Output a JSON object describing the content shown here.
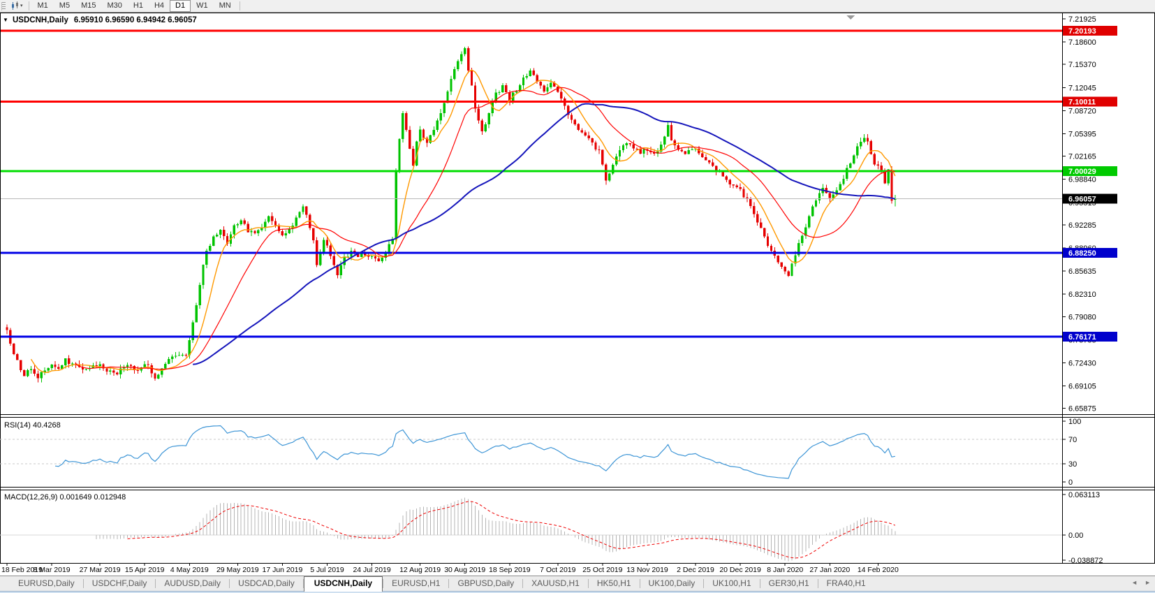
{
  "toolbar": {
    "chart_type_icon": "candlestick-chart-icon",
    "dropdown_caret": "▾",
    "timeframes": [
      {
        "label": "M1",
        "active": false
      },
      {
        "label": "M5",
        "active": false
      },
      {
        "label": "M15",
        "active": false
      },
      {
        "label": "M30",
        "active": false
      },
      {
        "label": "H1",
        "active": false
      },
      {
        "label": "H4",
        "active": false
      },
      {
        "label": "D1",
        "active": true
      },
      {
        "label": "W1",
        "active": false
      },
      {
        "label": "MN",
        "active": false
      }
    ]
  },
  "chart_data": {
    "type": "candlestick",
    "symbol": "USDCNH",
    "timeframe": "Daily",
    "title_symbol": "USDCNH,Daily",
    "title_ohlc": "6.95910 6.96590 6.94942 6.96057",
    "last_bar": {
      "open": 6.9591,
      "high": 6.9659,
      "low": 6.94942,
      "close": 6.96057
    },
    "candle_count": 259,
    "close_waypoints": [
      [
        0,
        6.775
      ],
      [
        1,
        6.755
      ],
      [
        3,
        6.725
      ],
      [
        5,
        6.708
      ],
      [
        7,
        6.713
      ],
      [
        9,
        6.702
      ],
      [
        12,
        6.72
      ],
      [
        15,
        6.715
      ],
      [
        17,
        6.728
      ],
      [
        20,
        6.722
      ],
      [
        23,
        6.712
      ],
      [
        26,
        6.721
      ],
      [
        29,
        6.715
      ],
      [
        32,
        6.71
      ],
      [
        35,
        6.72
      ],
      [
        38,
        6.715
      ],
      [
        41,
        6.721
      ],
      [
        43,
        6.7
      ],
      [
        45,
        6.715
      ],
      [
        47,
        6.728
      ],
      [
        50,
        6.735
      ],
      [
        52,
        6.738
      ],
      [
        54,
        6.78
      ],
      [
        56,
        6.84
      ],
      [
        58,
        6.885
      ],
      [
        60,
        6.905
      ],
      [
        62,
        6.915
      ],
      [
        64,
        6.898
      ],
      [
        66,
        6.92
      ],
      [
        68,
        6.928
      ],
      [
        70,
        6.915
      ],
      [
        72,
        6.908
      ],
      [
        74,
        6.922
      ],
      [
        76,
        6.932
      ],
      [
        78,
        6.922
      ],
      [
        80,
        6.908
      ],
      [
        82,
        6.918
      ],
      [
        84,
        6.932
      ],
      [
        86,
        6.948
      ],
      [
        87,
        6.938
      ],
      [
        89,
        6.898
      ],
      [
        90,
        6.868
      ],
      [
        92,
        6.902
      ],
      [
        94,
        6.88
      ],
      [
        96,
        6.852
      ],
      [
        98,
        6.874
      ],
      [
        100,
        6.884
      ],
      [
        102,
        6.878
      ],
      [
        104,
        6.882
      ],
      [
        106,
        6.877
      ],
      [
        108,
        6.872
      ],
      [
        110,
        6.882
      ],
      [
        112,
        6.905
      ],
      [
        113,
        7.0
      ],
      [
        114,
        7.045
      ],
      [
        115,
        7.082
      ],
      [
        116,
        7.058
      ],
      [
        117,
        7.032
      ],
      [
        118,
        7.008
      ],
      [
        119,
        7.04
      ],
      [
        120,
        7.058
      ],
      [
        122,
        7.038
      ],
      [
        124,
        7.062
      ],
      [
        126,
        7.085
      ],
      [
        128,
        7.115
      ],
      [
        130,
        7.145
      ],
      [
        132,
        7.168
      ],
      [
        133,
        7.178
      ],
      [
        134,
        7.148
      ],
      [
        136,
        7.092
      ],
      [
        138,
        7.058
      ],
      [
        140,
        7.082
      ],
      [
        142,
        7.112
      ],
      [
        144,
        7.122
      ],
      [
        146,
        7.102
      ],
      [
        148,
        7.118
      ],
      [
        150,
        7.132
      ],
      [
        152,
        7.142
      ],
      [
        154,
        7.128
      ],
      [
        156,
        7.118
      ],
      [
        158,
        7.128
      ],
      [
        160,
        7.112
      ],
      [
        162,
        7.092
      ],
      [
        164,
        7.075
      ],
      [
        166,
        7.06
      ],
      [
        168,
        7.052
      ],
      [
        170,
        7.038
      ],
      [
        172,
        7.028
      ],
      [
        174,
        6.986
      ],
      [
        176,
        7.012
      ],
      [
        178,
        7.032
      ],
      [
        180,
        7.042
      ],
      [
        182,
        7.034
      ],
      [
        184,
        7.026
      ],
      [
        186,
        7.032
      ],
      [
        188,
        7.026
      ],
      [
        190,
        7.036
      ],
      [
        192,
        7.065
      ],
      [
        193,
        7.042
      ],
      [
        195,
        7.034
      ],
      [
        197,
        7.026
      ],
      [
        199,
        7.034
      ],
      [
        201,
        7.026
      ],
      [
        203,
        7.014
      ],
      [
        205,
        7.006
      ],
      [
        207,
        6.996
      ],
      [
        209,
        6.988
      ],
      [
        211,
        6.98
      ],
      [
        213,
        6.972
      ],
      [
        215,
        6.958
      ],
      [
        217,
        6.938
      ],
      [
        219,
        6.916
      ],
      [
        221,
        6.896
      ],
      [
        223,
        6.876
      ],
      [
        225,
        6.862
      ],
      [
        227,
        6.847
      ],
      [
        229,
        6.882
      ],
      [
        231,
        6.908
      ],
      [
        233,
        6.932
      ],
      [
        235,
        6.96
      ],
      [
        237,
        6.976
      ],
      [
        239,
        6.962
      ],
      [
        241,
        6.97
      ],
      [
        243,
        6.992
      ],
      [
        245,
        7.012
      ],
      [
        247,
        7.034
      ],
      [
        249,
        7.046
      ],
      [
        250,
        7.04
      ],
      [
        252,
        7.012
      ],
      [
        254,
        6.998
      ],
      [
        255,
        6.985
      ],
      [
        256,
        7.0
      ],
      [
        257,
        6.959
      ],
      [
        258,
        6.96057
      ]
    ],
    "colors": {
      "up_candle": "#00c300",
      "down_candle": "#e60000",
      "background": "#ffffff",
      "border": "#000000"
    },
    "moving_averages": [
      {
        "period": 8,
        "color": "#ff9900",
        "width": 1.4
      },
      {
        "period": 21,
        "color": "#ff0000",
        "width": 1.2
      },
      {
        "period": 55,
        "color": "#1515bb",
        "width": 2
      }
    ],
    "horizontal_lines": [
      {
        "price": 7.20193,
        "color": "#ff0000",
        "width": 3,
        "badge_bg": "#e00000",
        "badge_fg": "#ffffff"
      },
      {
        "price": 7.10011,
        "color": "#ff0000",
        "width": 3,
        "badge_bg": "#e00000",
        "badge_fg": "#ffffff"
      },
      {
        "price": 7.00029,
        "color": "#00dd00",
        "width": 3,
        "badge_bg": "#00ca00",
        "badge_fg": "#ffffff"
      },
      {
        "price": 6.8825,
        "color": "#0000e6",
        "width": 3,
        "badge_bg": "#0000cc",
        "badge_fg": "#ffffff"
      },
      {
        "price": 6.76171,
        "color": "#0000e6",
        "width": 3,
        "badge_bg": "#0000cc",
        "badge_fg": "#ffffff"
      }
    ],
    "current_price": {
      "value": "6.96057",
      "price": 6.96057,
      "line_color": "#b8b8b8",
      "badge_bg": "#000000",
      "badge_fg": "#ffffff"
    },
    "y_axis": {
      "top_price": 7.2263,
      "bottom_price": 6.6514,
      "ticks": [
        "7.21925",
        "7.18600",
        "7.15370",
        "7.12045",
        "7.08720",
        "7.05395",
        "7.02165",
        "6.98840",
        "6.95515",
        "6.92285",
        "6.88960",
        "6.85635",
        "6.82310",
        "6.79080",
        "6.75755",
        "6.72430",
        "6.69105",
        "6.65875"
      ]
    },
    "x_labels": [
      "18 Feb 2019",
      "8 Mar 2019",
      "27 Mar 2019",
      "15 Apr 2019",
      "4 May 2019",
      "29 May 2019",
      "17 Jun 2019",
      "5 Jul 2019",
      "24 Jul 2019",
      "12 Aug 2019",
      "30 Aug 2019",
      "18 Sep 2019",
      "7 Oct 2019",
      "25 Oct 2019",
      "13 Nov 2019",
      "2 Dec 2019",
      "20 Dec 2019",
      "8 Jan 2020",
      "27 Jan 2020",
      "14 Feb 2020"
    ],
    "shift_marker_x_fraction": 0.8,
    "indicators": {
      "rsi": {
        "label": "RSI(14) 40.4268",
        "period": 14,
        "last_value": 40.4268,
        "line_color": "#3d95d6",
        "level_line_color": "#c8c8c8",
        "levels": [
          70,
          30
        ],
        "axis_ticks": [
          "100",
          "70",
          "30",
          "0"
        ]
      },
      "macd": {
        "label": "MACD(12,26,9) 0.001649 0.012948",
        "fast": 12,
        "slow": 26,
        "signal": 9,
        "main_value": 0.001649,
        "signal_value": 0.012948,
        "histogram_color": "#b4b4b4",
        "signal_color": "#ee0000",
        "axis_max": 0.063113,
        "axis_zero_label": "0.00",
        "axis_min": -0.038872,
        "axis_tick_labels": [
          "0.063113",
          "0.00",
          "-0.038872"
        ]
      }
    }
  },
  "tabs": {
    "items": [
      {
        "label": "EURUSD,Daily",
        "active": false
      },
      {
        "label": "USDCHF,Daily",
        "active": false
      },
      {
        "label": "AUDUSD,Daily",
        "active": false
      },
      {
        "label": "USDCAD,Daily",
        "active": false
      },
      {
        "label": "USDCNH,Daily",
        "active": true
      },
      {
        "label": "EURUSD,H1",
        "active": false
      },
      {
        "label": "GBPUSD,Daily",
        "active": false
      },
      {
        "label": "XAUUSD,H1",
        "active": false
      },
      {
        "label": "HK50,H1",
        "active": false
      },
      {
        "label": "UK100,Daily",
        "active": false
      },
      {
        "label": "UK100,H1",
        "active": false
      },
      {
        "label": "GER30,H1",
        "active": false
      },
      {
        "label": "FRA40,H1",
        "active": false
      }
    ],
    "scroll_left_icon": "◄",
    "scroll_right_icon": "►"
  }
}
